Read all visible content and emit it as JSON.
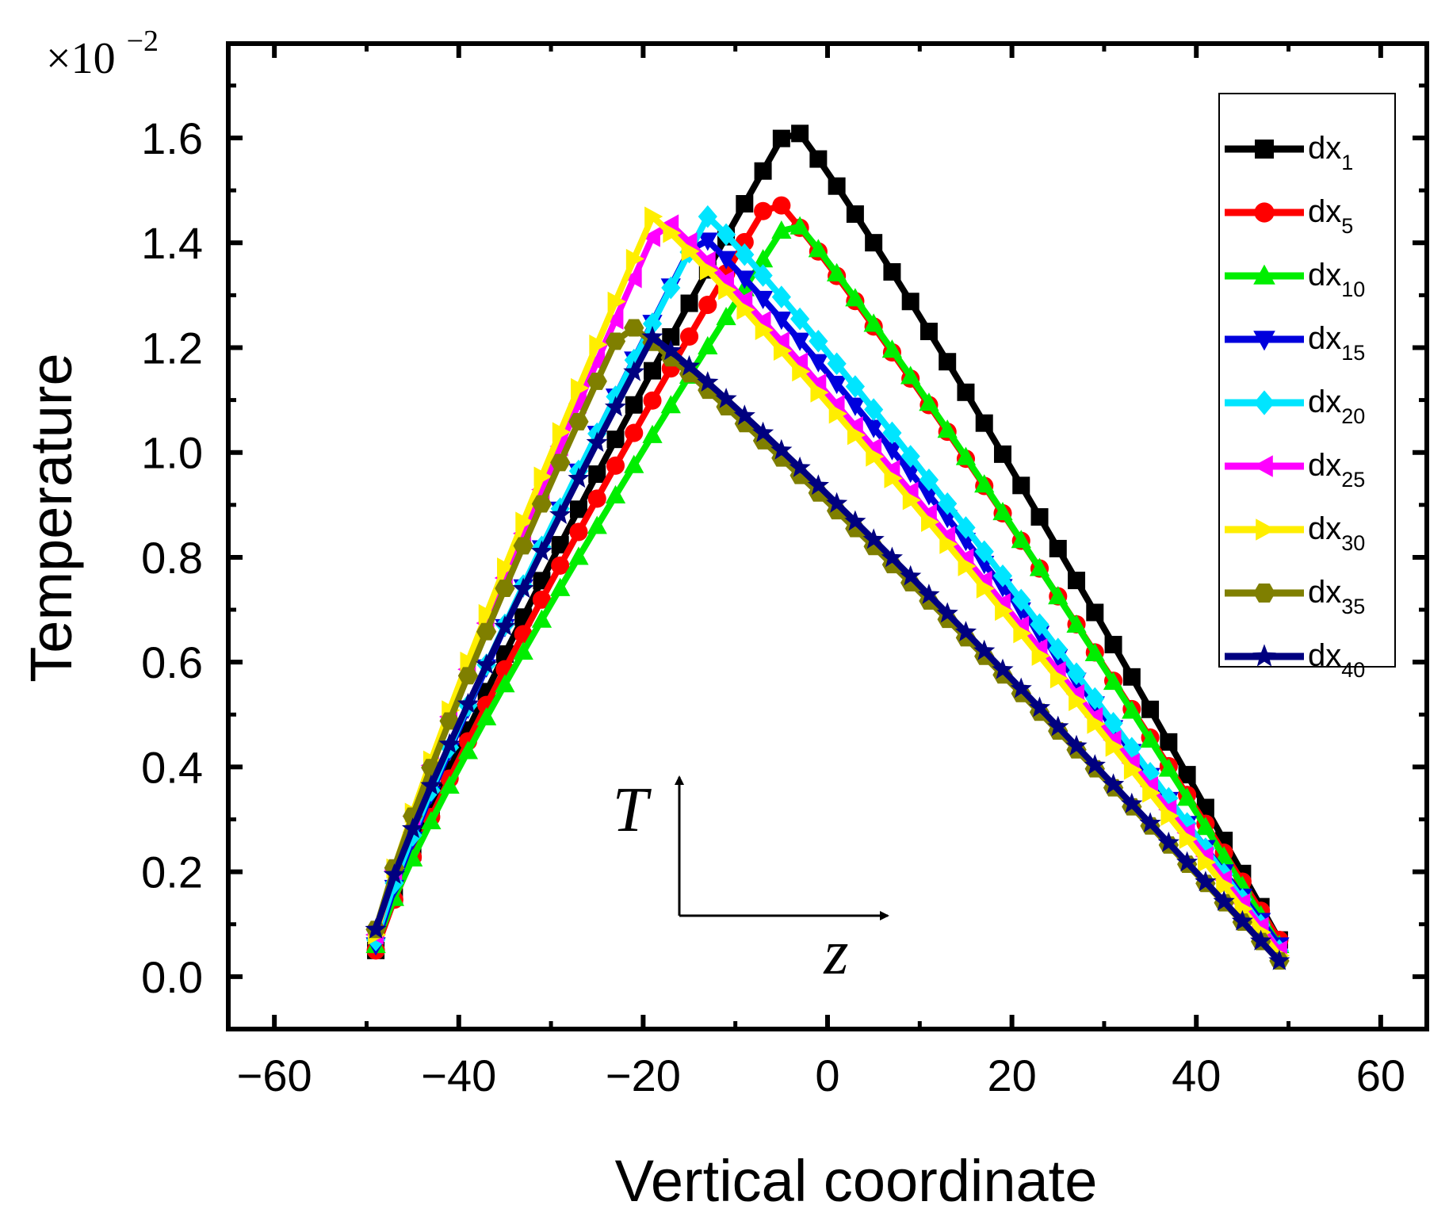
{
  "chart_data": {
    "type": "line",
    "title": "",
    "xlabel": "Vertical coordinate",
    "ylabel": "Temperature",
    "xlim": [
      -65,
      65
    ],
    "ylim": [
      -0.1,
      1.78
    ],
    "xticks": [
      -60,
      -40,
      -20,
      0,
      20,
      40,
      60
    ],
    "xtick_labels": [
      "−60",
      "−40",
      "−20",
      "0",
      "20",
      "40",
      "60"
    ],
    "yticks": [
      0.0,
      0.2,
      0.4,
      0.6,
      0.8,
      1.0,
      1.2,
      1.4,
      1.6
    ],
    "ytick_labels": [
      "0.0",
      "0.2",
      "0.4",
      "0.6",
      "0.8",
      "1.0",
      "1.2",
      "1.4",
      "1.6"
    ],
    "y_multiplier": {
      "base": "×10",
      "exponent": "−2"
    },
    "inset_axes": {
      "y_label": "T",
      "x_label": "z"
    },
    "legend_location": "top-right",
    "x_range_of_series": [
      -49,
      49
    ],
    "series": [
      {
        "name": "dx",
        "subscript": "1",
        "color": "#000000",
        "marker": "square",
        "peak_x": -4,
        "peak_y": 1.63,
        "start_y": 0.05,
        "end_y": 0.07
      },
      {
        "name": "dx",
        "subscript": "5",
        "color": "#ff0000",
        "marker": "circle",
        "peak_x": -6,
        "peak_y": 1.49,
        "start_y": 0.05,
        "end_y": 0.07
      },
      {
        "name": "dx",
        "subscript": "10",
        "color": "#00ee00",
        "marker": "triangle-up",
        "peak_x": -4,
        "peak_y": 1.45,
        "start_y": 0.06,
        "end_y": 0.06
      },
      {
        "name": "dx",
        "subscript": "15",
        "color": "#0000dd",
        "marker": "triangle-down",
        "peak_x": -14,
        "peak_y": 1.42,
        "start_y": 0.06,
        "end_y": 0.06
      },
      {
        "name": "dx",
        "subscript": "20",
        "color": "#00e5ff",
        "marker": "diamond",
        "peak_x": -13,
        "peak_y": 1.45,
        "start_y": 0.07,
        "end_y": 0.05
      },
      {
        "name": "dx",
        "subscript": "25",
        "color": "#ff00ff",
        "marker": "triangle-left",
        "peak_x": -18,
        "peak_y": 1.45,
        "start_y": 0.08,
        "end_y": 0.05
      },
      {
        "name": "dx",
        "subscript": "30",
        "color": "#ffee00",
        "marker": "triangle-right",
        "peak_x": -19,
        "peak_y": 1.45,
        "start_y": 0.08,
        "end_y": 0.04
      },
      {
        "name": "dx",
        "subscript": "35",
        "color": "#7f7f00",
        "marker": "hexagon",
        "peak_x": -22,
        "peak_y": 1.25,
        "start_y": 0.09,
        "end_y": 0.03
      },
      {
        "name": "dx",
        "subscript": "40",
        "color": "#000080",
        "marker": "star",
        "peak_x": -19,
        "peak_y": 1.22,
        "start_y": 0.09,
        "end_y": 0.03
      }
    ]
  }
}
